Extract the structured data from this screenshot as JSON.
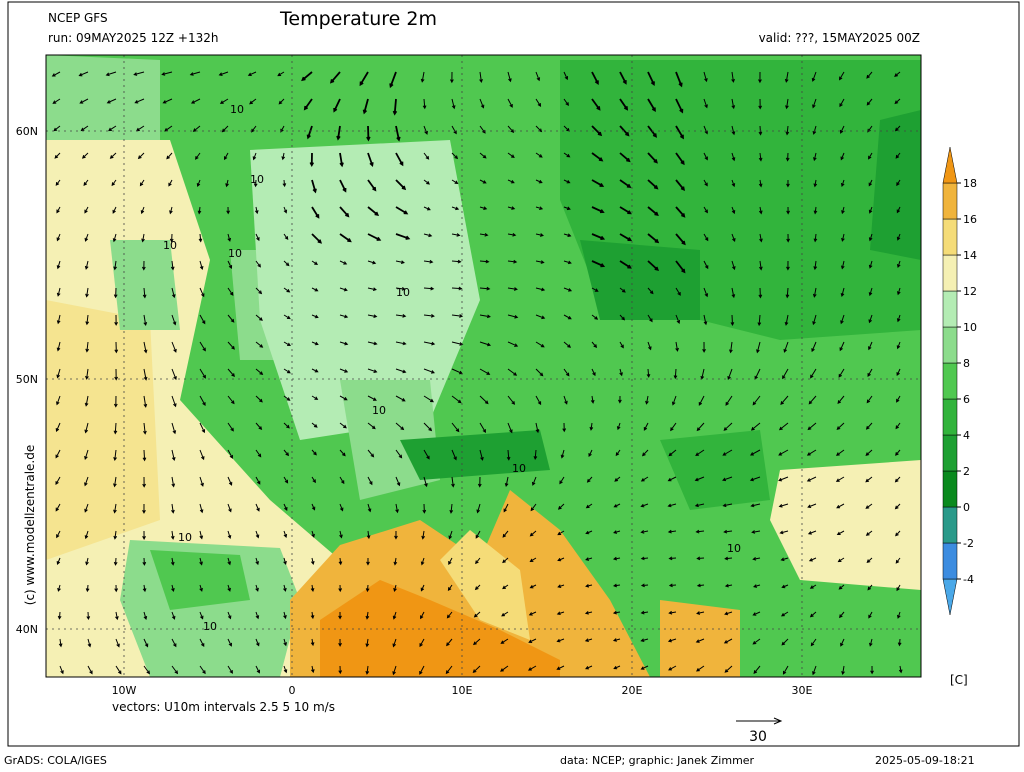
{
  "header": {
    "model": "NCEP GFS",
    "title": "Temperature 2m",
    "run": "run: 09MAY2025 12Z +132h",
    "valid": "valid: ???, 15MAY2025 00Z"
  },
  "map": {
    "lat_labels": [
      "60N",
      "50N",
      "40N"
    ],
    "lon_labels": [
      "10W",
      "0",
      "10E",
      "20E",
      "30E"
    ],
    "contour_label": "10",
    "vectors_note": "vectors: U10m intervals 2.5 5 10 m/s",
    "reference_vector": "30",
    "side_note": "(c) www.modellzentrale.de"
  },
  "colorbar": {
    "unit": "[C]",
    "levels": [
      -4,
      -2,
      0,
      2,
      4,
      6,
      8,
      10,
      12,
      14,
      16,
      18
    ],
    "colors": [
      "#4aa8e8",
      "#3c8ce0",
      "#2a9a8a",
      "#0a8a1e",
      "#1ea032",
      "#32b43c",
      "#50c850",
      "#8cdc8c",
      "#b4ecb4",
      "#f5f0b4",
      "#f5dc78",
      "#f0b43c",
      "#f09614"
    ]
  },
  "footer": {
    "software": "GrADS: COLA/IGES",
    "credit": "data: NCEP; graphic: Janek Zimmer",
    "timestamp": "2025-05-09-18:21"
  }
}
